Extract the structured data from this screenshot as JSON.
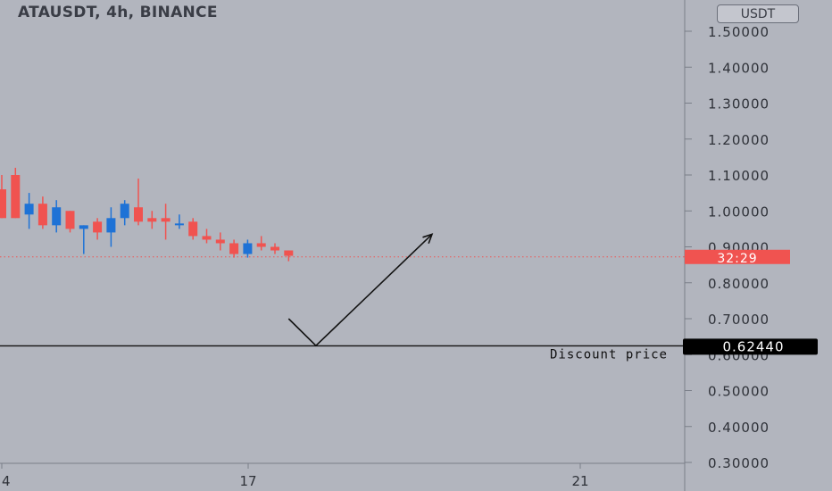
{
  "header": {
    "symbol_title": "ATAUSDT, 4h, BINANCE",
    "currency_button": "USDT"
  },
  "colors": {
    "background": "#b2b5be",
    "up": "#1e72d6",
    "down": "#f05350",
    "axis_text": "#2e3138",
    "price_line": "#f05350",
    "countdown_bg": "#f05350",
    "level_bg": "#000000"
  },
  "chart_data": {
    "type": "candlestick",
    "y_axis": {
      "ticks": [
        "1.50000",
        "1.40000",
        "1.30000",
        "1.20000",
        "1.10000",
        "1.00000",
        "0.90000",
        "0.80000",
        "0.70000",
        "0.60000",
        "0.50000",
        "0.40000",
        "0.30000"
      ],
      "ylim": [
        0.28,
        1.54
      ]
    },
    "x_axis": {
      "tick_labels": [
        "4",
        "17",
        "21"
      ]
    },
    "candles": [
      {
        "o": 1.06,
        "h": 1.1,
        "l": 0.98,
        "c": 0.98
      },
      {
        "o": 1.1,
        "h": 1.12,
        "l": 0.98,
        "c": 0.98
      },
      {
        "o": 0.99,
        "h": 1.05,
        "l": 0.95,
        "c": 1.02
      },
      {
        "o": 1.02,
        "h": 1.04,
        "l": 0.95,
        "c": 0.96
      },
      {
        "o": 0.96,
        "h": 1.03,
        "l": 0.94,
        "c": 1.01
      },
      {
        "o": 1.0,
        "h": 1.0,
        "l": 0.94,
        "c": 0.95
      },
      {
        "o": 0.95,
        "h": 0.96,
        "l": 0.88,
        "c": 0.96
      },
      {
        "o": 0.97,
        "h": 0.98,
        "l": 0.92,
        "c": 0.94
      },
      {
        "o": 0.94,
        "h": 1.01,
        "l": 0.9,
        "c": 0.98
      },
      {
        "o": 0.98,
        "h": 1.03,
        "l": 0.96,
        "c": 1.02
      },
      {
        "o": 1.01,
        "h": 1.09,
        "l": 0.96,
        "c": 0.97
      },
      {
        "o": 0.98,
        "h": 1.0,
        "l": 0.95,
        "c": 0.97
      },
      {
        "o": 0.98,
        "h": 1.02,
        "l": 0.92,
        "c": 0.97
      },
      {
        "o": 0.96,
        "h": 0.99,
        "l": 0.95,
        "c": 0.965
      },
      {
        "o": 0.97,
        "h": 0.98,
        "l": 0.92,
        "c": 0.93
      },
      {
        "o": 0.93,
        "h": 0.95,
        "l": 0.91,
        "c": 0.92
      },
      {
        "o": 0.92,
        "h": 0.94,
        "l": 0.89,
        "c": 0.91
      },
      {
        "o": 0.91,
        "h": 0.92,
        "l": 0.87,
        "c": 0.88
      },
      {
        "o": 0.88,
        "h": 0.92,
        "l": 0.87,
        "c": 0.91
      },
      {
        "o": 0.91,
        "h": 0.93,
        "l": 0.89,
        "c": 0.9
      },
      {
        "o": 0.9,
        "h": 0.91,
        "l": 0.88,
        "c": 0.89
      },
      {
        "o": 0.89,
        "h": 0.89,
        "l": 0.86,
        "c": 0.875
      }
    ],
    "last_price_line": 0.872,
    "countdown_label": "32:29",
    "level": {
      "value": 0.6244,
      "label": "0.62440",
      "annotation": "Discount price"
    },
    "drawing": {
      "type": "arrow-path",
      "points": [
        {
          "candle_index": 21.0,
          "price": 0.7
        },
        {
          "candle_index": 23.0,
          "price": 0.625
        },
        {
          "candle_index": 31.5,
          "price": 0.935
        }
      ]
    }
  }
}
